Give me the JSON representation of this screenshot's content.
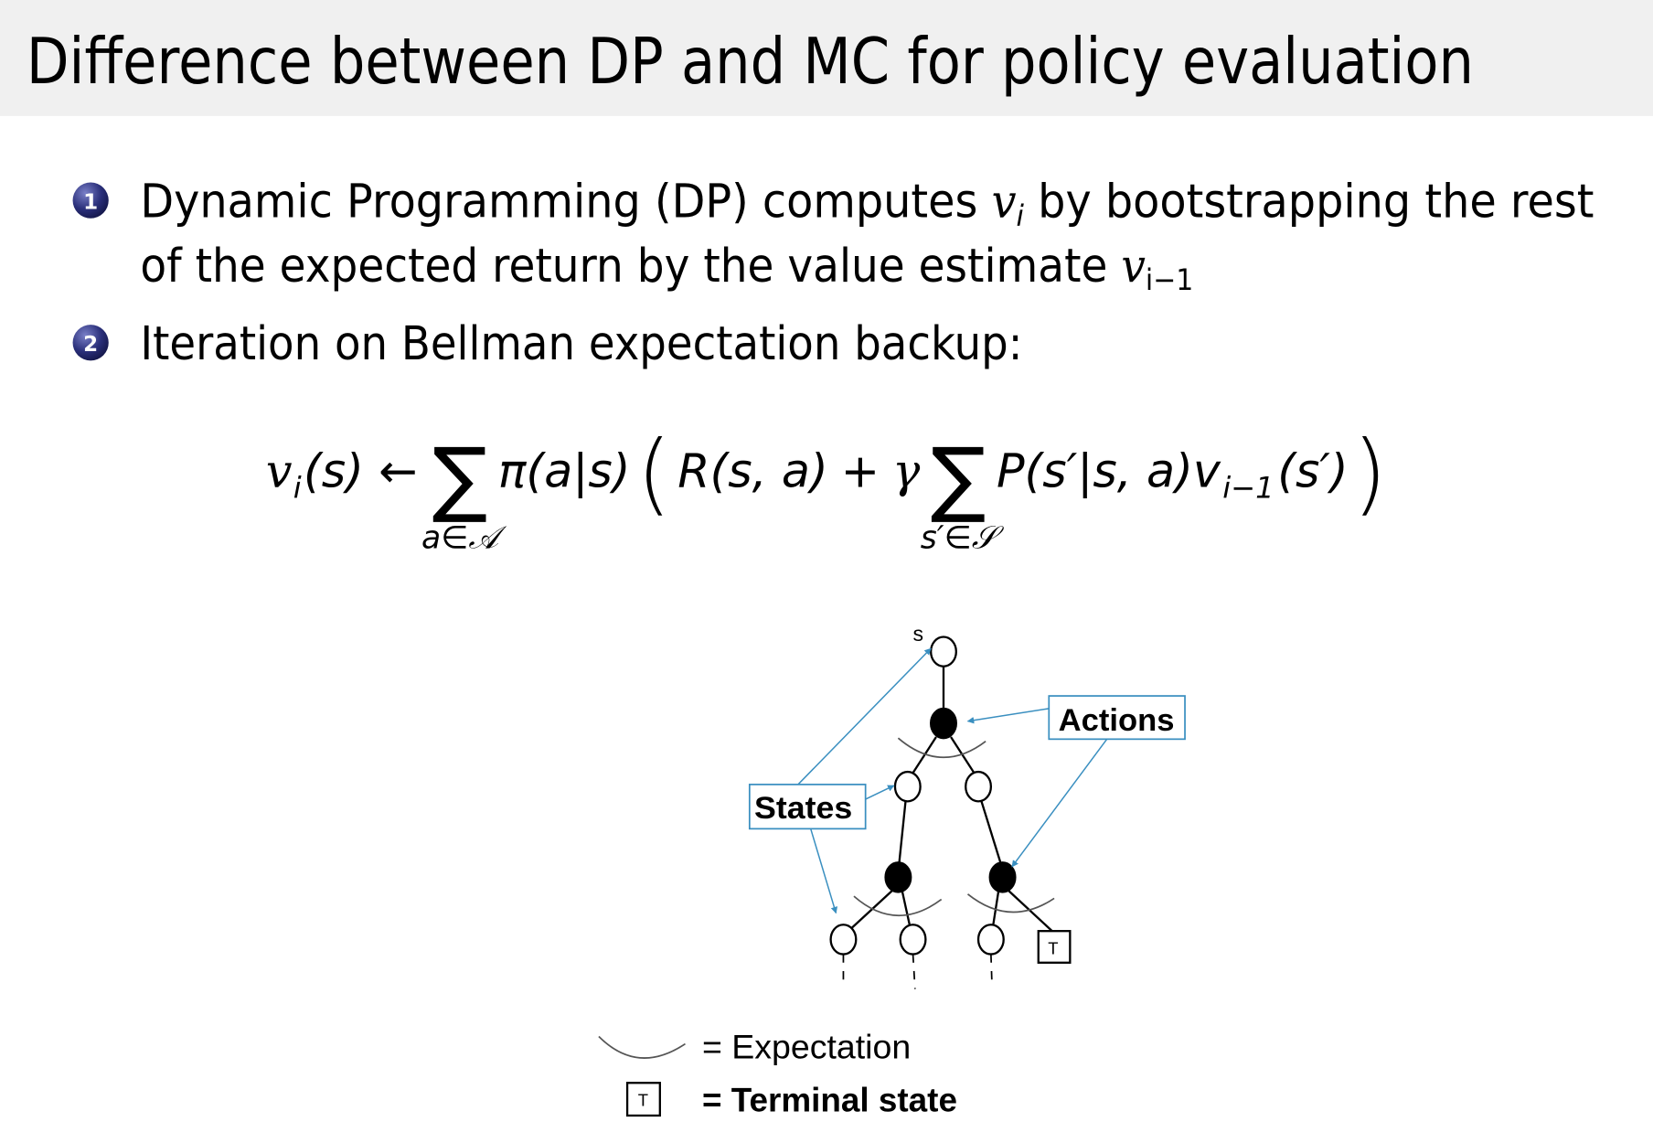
{
  "header": {
    "title": "Difference between DP and MC for policy evaluation",
    "background": "#f0f0f0"
  },
  "bullets": [
    {
      "number": "1",
      "line1_before": "Dynamic Programming (DP) computes ",
      "line1_var": "v",
      "line1_sub": "i",
      "line1_after": " by bootstrapping the rest",
      "line2_before": "of the expected return by the value estimate ",
      "line2_var": "v",
      "line2_sub": "i−1"
    },
    {
      "number": "2",
      "text": "Iteration on Bellman expectation backup:"
    }
  ],
  "bullet_color": "#2a2f7a",
  "formula": {
    "lhs": "v",
    "lhs_sub": "i",
    "lhs_arg": "(s)",
    "arrow": "←",
    "sum1": "∑",
    "sum1_under": "a∈𝒜",
    "policy": "π(a|s)",
    "open_paren": "(",
    "reward": "R(s, a)",
    "plus": "+",
    "gamma": "γ",
    "sum2": "∑",
    "sum2_under": "s′∈𝒮",
    "transition": "P(s′|s, a)v",
    "v_sub": "i−1",
    "v_arg": "(s′)",
    "close_paren": ")"
  },
  "diagram": {
    "root_label": "s",
    "actions_label": "Actions",
    "states_label": "States",
    "terminal_symbol": "T",
    "callout_color": "#3a8fc0",
    "legend": {
      "expectation": "= Expectation",
      "terminal_symbol": "T",
      "terminal": "= Terminal state"
    }
  }
}
